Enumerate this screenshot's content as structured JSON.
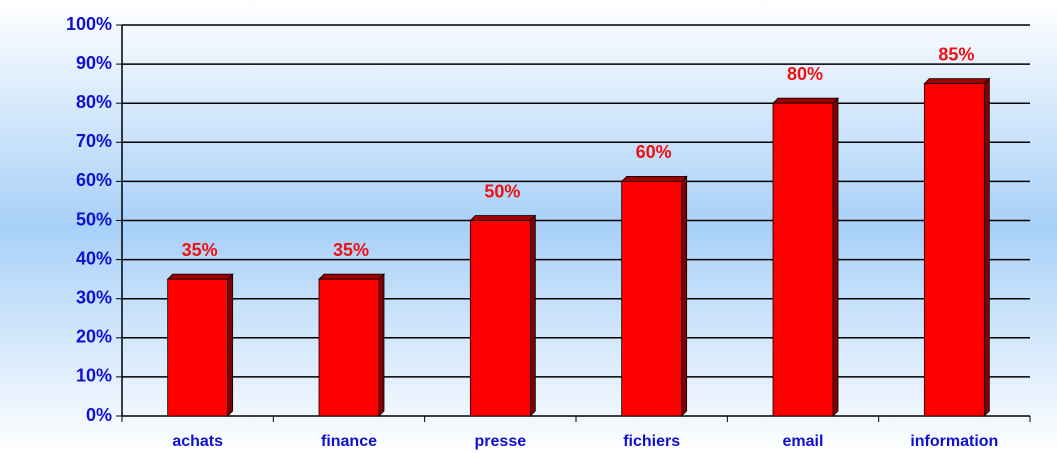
{
  "chart_data": {
    "type": "bar",
    "categories": [
      "achats",
      "finance",
      "presse",
      "fichiers",
      "email",
      "information"
    ],
    "values": [
      35,
      35,
      50,
      60,
      80,
      85
    ],
    "value_labels": [
      "35%",
      "35%",
      "50%",
      "60%",
      "80%",
      "85%"
    ],
    "color": "#ff0000",
    "ylim": [
      0,
      100
    ],
    "yticks": [
      {
        "value": 0,
        "label": "0%"
      },
      {
        "value": 10,
        "label": "10%"
      },
      {
        "value": 20,
        "label": "20%"
      },
      {
        "value": 30,
        "label": "30%"
      },
      {
        "value": 40,
        "label": "40%"
      },
      {
        "value": 50,
        "label": "50%"
      },
      {
        "value": 60,
        "label": "60%"
      },
      {
        "value": 70,
        "label": "70%"
      },
      {
        "value": 80,
        "label": "80%"
      },
      {
        "value": 90,
        "label": "90%"
      },
      {
        "value": 100,
        "label": "100%"
      }
    ],
    "grid": true
  }
}
